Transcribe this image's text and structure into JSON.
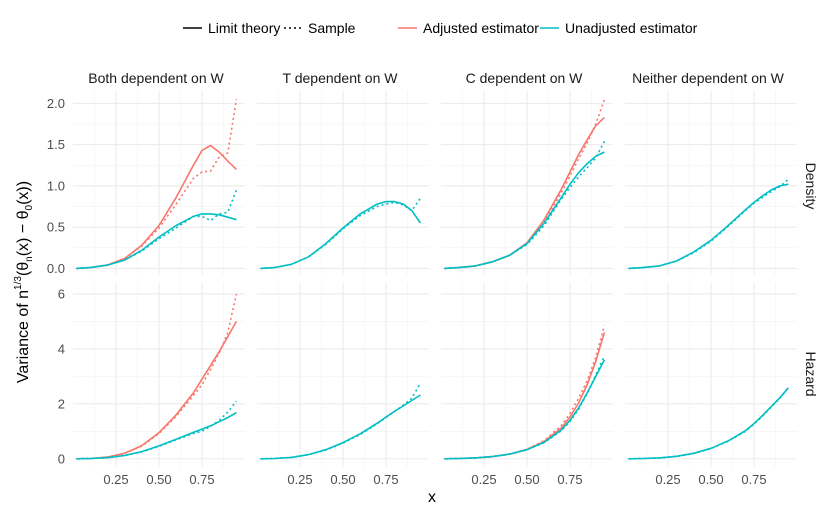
{
  "chart_data": {
    "type": "line",
    "xlabel": "x",
    "ylabel_parts": [
      "Variance of n",
      "1/3",
      "(θ",
      "n",
      "(x) − θ",
      "0",
      "(x))"
    ],
    "legend": {
      "linetype": [
        {
          "label": "Limit theory",
          "dash": "solid"
        },
        {
          "label": "Sample",
          "dash": "dotted"
        }
      ],
      "colour": [
        {
          "label": "Adjusted estimator",
          "color": "#F8766D"
        },
        {
          "label": "Unadjusted estimator",
          "color": "#00BFC4"
        }
      ]
    },
    "columns": [
      "Both dependent on W",
      "T dependent on W",
      "C dependent on W",
      "Neither dependent on W"
    ],
    "rows": [
      {
        "label": "Density",
        "ylim": [
          -0.08,
          2.15
        ],
        "yticks": [
          0.0,
          0.5,
          1.0,
          1.5,
          2.0
        ],
        "ytick_labels": [
          "0.0",
          "0.5",
          "1.0",
          "1.5",
          "2.0"
        ]
      },
      {
        "label": "Hazard",
        "ylim": [
          -0.3,
          6.4
        ],
        "yticks": [
          0,
          2,
          4,
          6
        ],
        "ytick_labels": [
          "0",
          "2",
          "4",
          "6"
        ]
      }
    ],
    "xlim": [
      0.0,
      1.0
    ],
    "xticks": [
      0.25,
      0.5,
      0.75
    ],
    "xtick_labels": [
      "0.25",
      "0.50",
      "0.75"
    ],
    "x": [
      0.02,
      0.1,
      0.2,
      0.3,
      0.4,
      0.5,
      0.6,
      0.7,
      0.75,
      0.8,
      0.85,
      0.9,
      0.95
    ],
    "panels": [
      {
        "row": 0,
        "col": 0,
        "series": [
          {
            "name": "Adjusted estimator",
            "kind": "Limit theory",
            "values": [
              0,
              0.01,
              0.04,
              0.12,
              0.28,
              0.52,
              0.86,
              1.25,
              1.43,
              1.49,
              1.41,
              1.3,
              1.2
            ]
          },
          {
            "name": "Adjusted estimator",
            "kind": "Sample",
            "values": [
              0,
              0.01,
              0.04,
              0.12,
              0.27,
              0.49,
              0.78,
              1.09,
              1.17,
              1.18,
              1.35,
              1.4,
              2.05
            ]
          },
          {
            "name": "Unadjusted estimator",
            "kind": "Limit theory",
            "values": [
              0,
              0.01,
              0.04,
              0.1,
              0.22,
              0.38,
              0.52,
              0.63,
              0.66,
              0.66,
              0.65,
              0.62,
              0.59
            ]
          },
          {
            "name": "Unadjusted estimator",
            "kind": "Sample",
            "values": [
              0,
              0.01,
              0.04,
              0.1,
              0.21,
              0.36,
              0.49,
              0.63,
              0.63,
              0.58,
              0.66,
              0.68,
              0.95
            ]
          }
        ]
      },
      {
        "row": 0,
        "col": 1,
        "series": [
          {
            "name": "Unadjusted estimator",
            "kind": "Limit theory",
            "values": [
              0,
              0.01,
              0.05,
              0.14,
              0.3,
              0.49,
              0.66,
              0.78,
              0.81,
              0.81,
              0.78,
              0.7,
              0.55
            ]
          },
          {
            "name": "Unadjusted estimator",
            "kind": "Sample",
            "values": [
              0,
              0.01,
              0.05,
              0.14,
              0.29,
              0.48,
              0.64,
              0.75,
              0.78,
              0.8,
              0.77,
              0.7,
              0.85
            ]
          }
        ]
      },
      {
        "row": 0,
        "col": 2,
        "series": [
          {
            "name": "Adjusted estimator",
            "kind": "Limit theory",
            "values": [
              0,
              0.01,
              0.03,
              0.08,
              0.16,
              0.31,
              0.59,
              0.96,
              1.17,
              1.38,
              1.56,
              1.73,
              1.83
            ]
          },
          {
            "name": "Adjusted estimator",
            "kind": "Sample",
            "values": [
              0,
              0.01,
              0.03,
              0.08,
              0.16,
              0.3,
              0.55,
              0.92,
              1.12,
              1.33,
              1.52,
              1.75,
              2.05
            ]
          },
          {
            "name": "Unadjusted estimator",
            "kind": "Limit theory",
            "values": [
              0,
              0.01,
              0.03,
              0.08,
              0.16,
              0.3,
              0.55,
              0.86,
              1.02,
              1.16,
              1.27,
              1.36,
              1.41
            ]
          },
          {
            "name": "Unadjusted estimator",
            "kind": "Sample",
            "values": [
              0,
              0.01,
              0.03,
              0.08,
              0.16,
              0.29,
              0.52,
              0.84,
              0.98,
              1.11,
              1.22,
              1.34,
              1.54
            ]
          }
        ]
      },
      {
        "row": 0,
        "col": 3,
        "series": [
          {
            "name": "Unadjusted estimator",
            "kind": "Limit theory",
            "values": [
              0,
              0.01,
              0.03,
              0.09,
              0.2,
              0.34,
              0.52,
              0.71,
              0.8,
              0.88,
              0.95,
              1.0,
              1.02
            ]
          },
          {
            "name": "Unadjusted estimator",
            "kind": "Sample",
            "values": [
              0,
              0.01,
              0.03,
              0.09,
              0.19,
              0.33,
              0.51,
              0.7,
              0.79,
              0.86,
              0.93,
              0.99,
              1.08
            ]
          }
        ]
      },
      {
        "row": 1,
        "col": 0,
        "series": [
          {
            "name": "Adjusted estimator",
            "kind": "Limit theory",
            "values": [
              0,
              0.01,
              0.06,
              0.2,
              0.48,
              0.95,
              1.6,
              2.4,
              2.9,
              3.4,
              3.9,
              4.45,
              5.0
            ]
          },
          {
            "name": "Adjusted estimator",
            "kind": "Sample",
            "values": [
              0,
              0.01,
              0.06,
              0.2,
              0.46,
              0.92,
              1.55,
              2.3,
              2.7,
              3.25,
              3.85,
              4.6,
              6.0
            ]
          },
          {
            "name": "Unadjusted estimator",
            "kind": "Limit theory",
            "values": [
              0,
              0.01,
              0.04,
              0.12,
              0.26,
              0.47,
              0.71,
              0.96,
              1.08,
              1.2,
              1.35,
              1.5,
              1.68
            ]
          },
          {
            "name": "Unadjusted estimator",
            "kind": "Sample",
            "values": [
              0,
              0.01,
              0.04,
              0.12,
              0.25,
              0.45,
              0.69,
              0.92,
              1.0,
              1.18,
              1.4,
              1.7,
              2.1
            ]
          }
        ]
      },
      {
        "row": 1,
        "col": 1,
        "series": [
          {
            "name": "Unadjusted estimator",
            "kind": "Limit theory",
            "values": [
              0,
              0.01,
              0.05,
              0.15,
              0.33,
              0.59,
              0.91,
              1.3,
              1.52,
              1.73,
              1.92,
              2.12,
              2.32
            ]
          },
          {
            "name": "Unadjusted estimator",
            "kind": "Sample",
            "values": [
              0,
              0.01,
              0.05,
              0.15,
              0.32,
              0.57,
              0.88,
              1.28,
              1.5,
              1.72,
              1.95,
              2.2,
              2.75
            ]
          }
        ]
      },
      {
        "row": 1,
        "col": 2,
        "series": [
          {
            "name": "Adjusted estimator",
            "kind": "Limit theory",
            "values": [
              0,
              0.01,
              0.03,
              0.08,
              0.17,
              0.34,
              0.63,
              1.13,
              1.52,
              2.03,
              2.7,
              3.55,
              4.6
            ]
          },
          {
            "name": "Adjusted estimator",
            "kind": "Sample",
            "values": [
              0,
              0.01,
              0.03,
              0.08,
              0.17,
              0.34,
              0.66,
              1.22,
              1.65,
              2.2,
              2.85,
              3.7,
              4.85
            ]
          },
          {
            "name": "Unadjusted estimator",
            "kind": "Limit theory",
            "values": [
              0,
              0.01,
              0.03,
              0.08,
              0.17,
              0.33,
              0.6,
              1.05,
              1.4,
              1.85,
              2.4,
              3.0,
              3.6
            ]
          },
          {
            "name": "Unadjusted estimator",
            "kind": "Sample",
            "values": [
              0,
              0.01,
              0.03,
              0.08,
              0.17,
              0.33,
              0.59,
              1.02,
              1.36,
              1.8,
              2.38,
              3.05,
              3.75
            ]
          }
        ]
      },
      {
        "row": 1,
        "col": 3,
        "series": [
          {
            "name": "Unadjusted estimator",
            "kind": "Limit theory",
            "values": [
              0,
              0.01,
              0.03,
              0.09,
              0.2,
              0.38,
              0.65,
              1.02,
              1.28,
              1.58,
              1.9,
              2.22,
              2.58
            ]
          },
          {
            "name": "Unadjusted estimator",
            "kind": "Sample",
            "values": [
              0,
              0.01,
              0.03,
              0.09,
              0.19,
              0.37,
              0.64,
              1.0,
              1.26,
              1.55,
              1.88,
              2.2,
              2.6
            ]
          }
        ]
      }
    ]
  }
}
